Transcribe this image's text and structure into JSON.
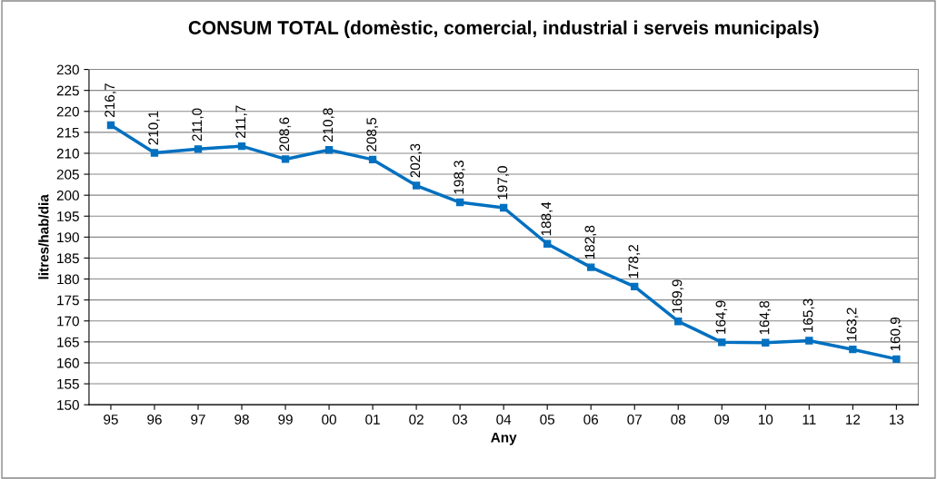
{
  "chart_data": {
    "type": "line",
    "title": "CONSUM TOTAL (domèstic, comercial, industrial i serveis municipals)",
    "xlabel": "Any",
    "ylabel": "litres/hab/dia",
    "categories": [
      "95",
      "96",
      "97",
      "98",
      "99",
      "00",
      "01",
      "02",
      "03",
      "04",
      "05",
      "06",
      "07",
      "08",
      "09",
      "10",
      "11",
      "12",
      "13"
    ],
    "series": [
      {
        "color": "#0070c0",
        "values": [
          216.7,
          210.1,
          211.0,
          211.7,
          208.6,
          210.8,
          208.5,
          202.3,
          198.3,
          197.0,
          188.4,
          182.8,
          178.2,
          169.9,
          164.9,
          164.8,
          165.3,
          163.2,
          160.9
        ],
        "value_labels": [
          "216,7",
          "210,1",
          "211,0",
          "211,7",
          "208,6",
          "210,8",
          "208,5",
          "202,3",
          "198,3",
          "197,0",
          "188,4",
          "182,8",
          "178,2",
          "169,9",
          "164,9",
          "164,8",
          "165,3",
          "163,2",
          "160,9"
        ]
      }
    ],
    "ylim": [
      150,
      230
    ],
    "yticks": [
      150,
      155,
      160,
      165,
      170,
      175,
      180,
      185,
      190,
      195,
      200,
      205,
      210,
      215,
      220,
      225,
      230
    ],
    "grid": "y",
    "marker": "square",
    "line_style": "solid",
    "legend": false
  }
}
